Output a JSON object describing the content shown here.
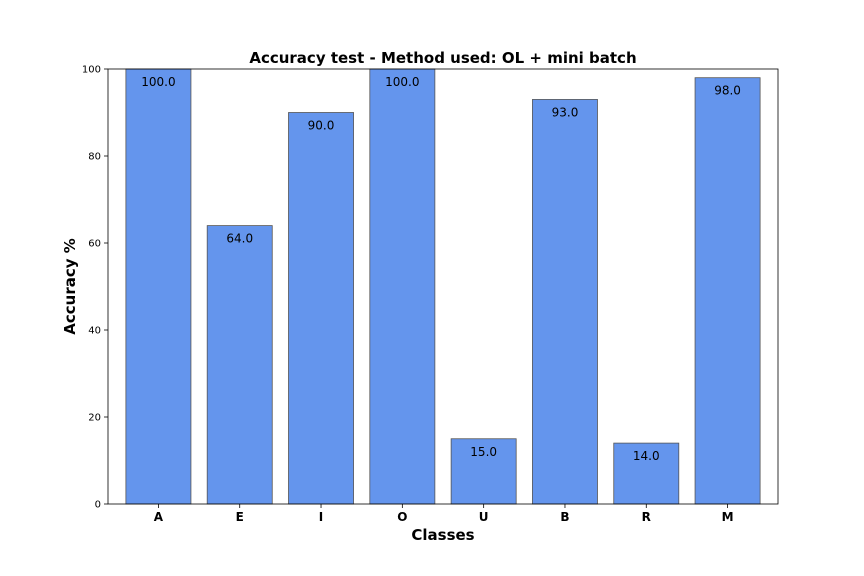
{
  "chart_data": {
    "type": "bar",
    "title": "Accuracy test - Method used: OL + mini batch",
    "xlabel": "Classes",
    "ylabel": "Accuracy %",
    "categories": [
      "A",
      "E",
      "I",
      "O",
      "U",
      "B",
      "R",
      "M"
    ],
    "values": [
      100.0,
      64.0,
      90.0,
      100.0,
      15.0,
      93.0,
      14.0,
      98.0
    ],
    "value_labels": [
      "100.0",
      "64.0",
      "90.0",
      "100.0",
      "15.0",
      "93.0",
      "14.0",
      "98.0"
    ],
    "ylim": [
      0,
      100
    ],
    "yticks": [
      0,
      20,
      40,
      60,
      80,
      100
    ],
    "grid": false,
    "bar_color": "#6495ED"
  }
}
